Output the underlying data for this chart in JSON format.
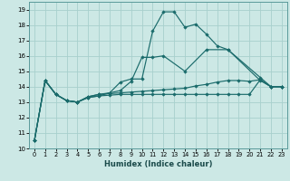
{
  "xlabel": "Humidex (Indice chaleur)",
  "xlim": [
    -0.5,
    23.5
  ],
  "ylim": [
    10,
    19.5
  ],
  "yticks": [
    10,
    11,
    12,
    13,
    14,
    15,
    16,
    17,
    18,
    19
  ],
  "xticks": [
    0,
    1,
    2,
    3,
    4,
    5,
    6,
    7,
    8,
    9,
    10,
    11,
    12,
    13,
    14,
    15,
    16,
    17,
    18,
    19,
    20,
    21,
    22,
    23
  ],
  "background_color": "#cce8e5",
  "grid_color": "#a8d0cd",
  "line_color": "#1a6b6b",
  "lines": [
    {
      "x": [
        0,
        1,
        2,
        3,
        4,
        5,
        6,
        7,
        8,
        9,
        10,
        11,
        12,
        13,
        14,
        15,
        16,
        17,
        18,
        21,
        22,
        23
      ],
      "y": [
        10.5,
        14.4,
        13.5,
        13.1,
        13.0,
        13.3,
        13.4,
        13.6,
        14.3,
        14.5,
        14.5,
        17.6,
        18.85,
        18.85,
        17.85,
        18.05,
        17.4,
        16.65,
        16.4,
        14.6,
        14.0,
        14.0
      ]
    },
    {
      "x": [
        0,
        1,
        2,
        3,
        4,
        5,
        6,
        7,
        8,
        9,
        10,
        11,
        12,
        14,
        16,
        18,
        21,
        22,
        23
      ],
      "y": [
        10.5,
        14.4,
        13.5,
        13.1,
        13.0,
        13.35,
        13.5,
        13.6,
        13.75,
        14.35,
        15.9,
        15.9,
        16.0,
        15.0,
        16.4,
        16.4,
        14.4,
        14.0,
        14.0
      ]
    },
    {
      "x": [
        0,
        1,
        2,
        3,
        4,
        5,
        6,
        7,
        8,
        9,
        10,
        11,
        12,
        13,
        14,
        15,
        16,
        17,
        18,
        19,
        20,
        21,
        22,
        23
      ],
      "y": [
        10.5,
        14.4,
        13.5,
        13.1,
        13.0,
        13.35,
        13.5,
        13.55,
        13.6,
        13.65,
        13.7,
        13.75,
        13.8,
        13.85,
        13.9,
        14.05,
        14.15,
        14.3,
        14.4,
        14.4,
        14.35,
        14.45,
        14.0,
        14.0
      ]
    },
    {
      "x": [
        0,
        1,
        2,
        3,
        4,
        5,
        6,
        7,
        8,
        9,
        10,
        11,
        12,
        13,
        14,
        15,
        16,
        17,
        18,
        19,
        20,
        21,
        22,
        23
      ],
      "y": [
        10.5,
        14.4,
        13.5,
        13.1,
        13.0,
        13.3,
        13.4,
        13.45,
        13.5,
        13.5,
        13.5,
        13.5,
        13.5,
        13.5,
        13.5,
        13.5,
        13.5,
        13.5,
        13.5,
        13.5,
        13.5,
        14.45,
        14.0,
        14.0
      ]
    }
  ]
}
